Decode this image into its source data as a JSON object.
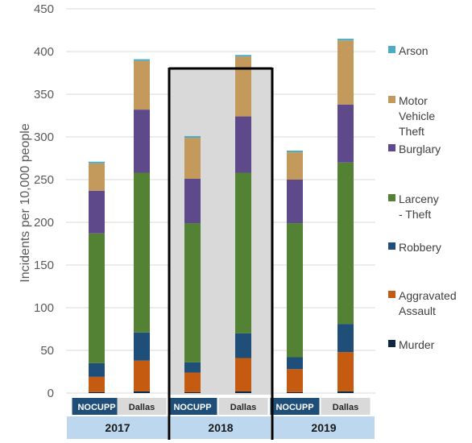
{
  "chart_data": {
    "type": "bar",
    "stacked": true,
    "ylabel": "Incidents per 10,000 people",
    "ylim": [
      0,
      450
    ],
    "y_ticks": [
      "0",
      "50",
      "100",
      "150",
      "200",
      "250",
      "300",
      "350",
      "400",
      "450"
    ],
    "grid": true,
    "legend_position": "right",
    "highlighted_year": "2018",
    "years": [
      "2017",
      "2018",
      "2019"
    ],
    "categories": [
      "NOCUPP",
      "Dallas",
      "NOCUPP",
      "Dallas",
      "NOCUPP",
      "Dallas"
    ],
    "series": [
      {
        "name": "Murder",
        "color": "#0e2841",
        "values": [
          1,
          2,
          1,
          2,
          1,
          2
        ]
      },
      {
        "name": "Aggravated Assault",
        "color": "#c55a11",
        "values": [
          18,
          36,
          23,
          39,
          27,
          46
        ]
      },
      {
        "name": "Robbery",
        "color": "#1f4e79",
        "values": [
          16,
          33,
          12,
          29,
          14,
          33
        ]
      },
      {
        "name": "Larceny - Theft",
        "color": "#548235",
        "values": [
          152,
          187,
          163,
          188,
          157,
          189
        ]
      },
      {
        "name": "Burglary",
        "color": "#5e4a8b",
        "values": [
          50,
          74,
          52,
          66,
          51,
          68
        ]
      },
      {
        "name": "Motor Vehicle Theft",
        "color": "#c49a5c",
        "values": [
          32,
          57,
          48,
          70,
          32,
          75
        ]
      },
      {
        "name": "Arson",
        "color": "#4bacc6",
        "values": [
          2,
          2,
          2,
          2,
          2,
          2
        ]
      }
    ],
    "legend_lines": [
      [
        "Arson"
      ],
      [
        "Motor",
        "Vehicle",
        "Theft"
      ],
      [
        "Burglary"
      ],
      [
        "Larceny",
        "- Theft"
      ],
      [
        "Robbery"
      ],
      [
        "Aggravated",
        "Assault"
      ],
      [
        "Murder"
      ]
    ]
  }
}
